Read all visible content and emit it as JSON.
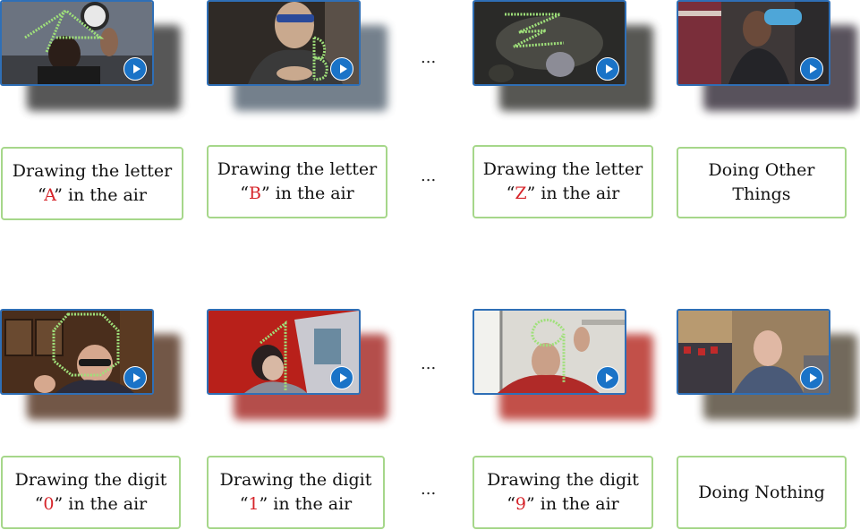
{
  "rows": [
    {
      "items": [
        {
          "prefix": "Drawing the letter",
          "open": "“",
          "symbol": "A",
          "close": "” in the air"
        },
        {
          "prefix": "Drawing the letter",
          "open": "“",
          "symbol": "B",
          "close": "” in the air"
        },
        {
          "prefix": "Drawing the letter",
          "open": "“",
          "symbol": "Z",
          "close": "” in the air"
        },
        {
          "line1": "Doing Other",
          "line2": "Things"
        }
      ]
    },
    {
      "items": [
        {
          "prefix": "Drawing the digit",
          "open": "“",
          "symbol": "0",
          "close": "” in the air"
        },
        {
          "prefix": "Drawing the digit",
          "open": "“",
          "symbol": "1",
          "close": "” in the air"
        },
        {
          "prefix": "Drawing the digit",
          "open": "“",
          "symbol": "9",
          "close": "” in the air"
        },
        {
          "line1": "Doing Nothing"
        }
      ]
    }
  ],
  "ellipsis": "...",
  "thumbnails": [
    {
      "icon": "play-icon",
      "trace": "A"
    },
    {
      "icon": "play-icon",
      "trace": "B"
    },
    {
      "icon": "play-icon",
      "trace": "Z"
    },
    {
      "icon": "play-icon",
      "trace": ""
    },
    {
      "icon": "play-icon",
      "trace": "0"
    },
    {
      "icon": "play-icon",
      "trace": "1"
    },
    {
      "icon": "play-icon",
      "trace": "9"
    },
    {
      "icon": "play-icon",
      "trace": ""
    }
  ],
  "colors": {
    "frame_border": "#2f6fb6",
    "label_border": "#a6d78a",
    "highlight_text": "#d6242a",
    "trace": "#9fe07a",
    "play_button": "#1a73c7"
  }
}
